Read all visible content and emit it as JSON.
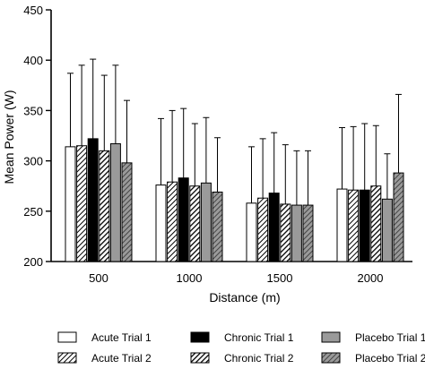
{
  "chart_data": {
    "type": "bar",
    "xlabel": "Distance (m)",
    "ylabel": "Mean Power (W)",
    "ylim": [
      200,
      450
    ],
    "yticks": [
      200,
      250,
      300,
      350,
      400,
      450
    ],
    "categories": [
      "500",
      "1000",
      "1500",
      "2000"
    ],
    "error_bars": "upper SD whiskers",
    "legend_position": "bottom",
    "series": [
      {
        "name": "Acute Trial 1",
        "style": "white",
        "values": [
          314,
          276,
          258,
          272
        ],
        "errors": [
          73,
          66,
          56,
          61
        ]
      },
      {
        "name": "Acute Trial 2",
        "style": "white-hatched",
        "values": [
          315,
          279,
          263,
          271
        ],
        "errors": [
          80,
          71,
          59,
          63
        ]
      },
      {
        "name": "Chronic Trial 1",
        "style": "black",
        "values": [
          322,
          283,
          268,
          271
        ],
        "errors": [
          79,
          69,
          60,
          66
        ]
      },
      {
        "name": "Chronic Trial 2",
        "style": "black-hatched",
        "values": [
          310,
          275,
          257,
          275
        ],
        "errors": [
          75,
          62,
          59,
          60
        ]
      },
      {
        "name": "Placebo Trial 1",
        "style": "grey",
        "values": [
          317,
          278,
          256,
          262
        ],
        "errors": [
          78,
          65,
          54,
          45
        ]
      },
      {
        "name": "Placebo Trial 2",
        "style": "grey-hatched",
        "values": [
          298,
          269,
          256,
          288
        ],
        "errors": [
          62,
          54,
          54,
          78
        ]
      }
    ]
  }
}
